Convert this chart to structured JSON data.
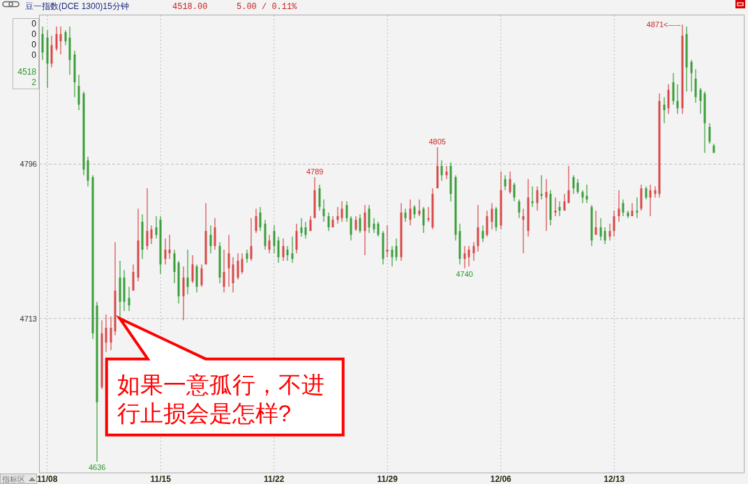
{
  "chart_data": {
    "type": "candlestick",
    "title": "豆一指数(DCE 1300)15分钟",
    "categories": [
      null,
      "11/08",
      null,
      null,
      null,
      null,
      null,
      null,
      null,
      null,
      null,
      null,
      null,
      null,
      null,
      null,
      null,
      null,
      null,
      null,
      null,
      null,
      null,
      null,
      null,
      null,
      "11/15",
      null,
      null,
      null,
      null,
      null,
      null,
      null,
      null,
      null,
      null,
      null,
      null,
      null,
      null,
      null,
      null,
      null,
      null,
      null,
      null,
      null,
      null,
      null,
      null,
      "11/22",
      null,
      null,
      null,
      null,
      null,
      null,
      null,
      null,
      null,
      null,
      null,
      null,
      null,
      null,
      null,
      null,
      null,
      null,
      null,
      null,
      null,
      null,
      null,
      null,
      "11/29",
      null,
      null,
      null,
      null,
      null,
      null,
      null,
      null,
      null,
      null,
      null,
      null,
      null,
      null,
      null,
      null,
      null,
      null,
      null,
      null,
      null,
      null,
      null,
      null,
      "12/06",
      null,
      null,
      null,
      null,
      null,
      null,
      null,
      null,
      null,
      null,
      null,
      null,
      null,
      null,
      null,
      null,
      null,
      null,
      null,
      null,
      null,
      null,
      null,
      null,
      "12/13",
      null,
      null,
      null,
      null,
      null,
      null,
      null,
      null,
      null,
      null,
      null,
      null,
      null,
      null,
      null,
      null,
      null,
      null,
      null,
      null,
      null,
      null
    ],
    "ohlc": [
      [
        4866,
        4870,
        4852,
        4856
      ],
      [
        4864,
        4868,
        4837,
        4850
      ],
      [
        4850,
        4865,
        4848,
        4860
      ],
      [
        4858,
        4870,
        4857,
        4866
      ],
      [
        4862,
        4870,
        4855,
        4866
      ],
      [
        4867,
        4868,
        4860,
        4862
      ],
      [
        4864,
        4870,
        4844,
        4852
      ],
      [
        4855,
        4857,
        4832,
        4840
      ],
      [
        4838,
        4844,
        4825,
        4828
      ],
      [
        4834,
        4835,
        4790,
        4793
      ],
      [
        4798,
        4800,
        4784,
        4787
      ],
      [
        4789,
        4790,
        4702,
        4705
      ],
      [
        4720,
        4722,
        4636,
        4668
      ],
      [
        4676,
        4712,
        4675,
        4705
      ],
      [
        4700,
        4715,
        4695,
        4708
      ],
      [
        4700,
        4714,
        4696,
        4708
      ],
      [
        4706,
        4754,
        4704,
        4728
      ],
      [
        4735,
        4744,
        4713,
        4722
      ],
      [
        4735,
        4739,
        4717,
        4722
      ],
      [
        4724,
        4730,
        4717,
        4720
      ],
      [
        4728,
        4742,
        4728,
        4738
      ],
      [
        4735,
        4772,
        4733,
        4755
      ],
      [
        4765,
        4769,
        4745,
        4750
      ],
      [
        4752,
        4783,
        4750,
        4760
      ],
      [
        4756,
        4763,
        4753,
        4761
      ],
      [
        4762,
        4768,
        4756,
        4758
      ],
      [
        4766,
        4768,
        4737,
        4742
      ],
      [
        4745,
        4756,
        4742,
        4750
      ],
      [
        4748,
        4758,
        4745,
        4750
      ],
      [
        4748,
        4750,
        4732,
        4738
      ],
      [
        4743,
        4744,
        4721,
        4725
      ],
      [
        4725,
        4741,
        4712,
        4735
      ],
      [
        4735,
        4750,
        4726,
        4730
      ],
      [
        4733,
        4747,
        4732,
        4742
      ],
      [
        4741,
        4742,
        4727,
        4730
      ],
      [
        4731,
        4742,
        4730,
        4740
      ],
      [
        4742,
        4775,
        4742,
        4760
      ],
      [
        4758,
        4763,
        4748,
        4752
      ],
      [
        4752,
        4767,
        4750,
        4762
      ],
      [
        4752,
        4754,
        4732,
        4735
      ],
      [
        4730,
        4750,
        4727,
        4738
      ],
      [
        4740,
        4758,
        4730,
        4748
      ],
      [
        4732,
        4746,
        4727,
        4742
      ],
      [
        4735,
        4748,
        4734,
        4744
      ],
      [
        4738,
        4748,
        4737,
        4745
      ],
      [
        4748,
        4750,
        4743,
        4745
      ],
      [
        4745,
        4767,
        4744,
        4752
      ],
      [
        4760,
        4772,
        4759,
        4768
      ],
      [
        4770,
        4773,
        4760,
        4762
      ],
      [
        4764,
        4766,
        4750,
        4752
      ],
      [
        4750,
        4758,
        4748,
        4755
      ],
      [
        4760,
        4763,
        4748,
        4752
      ],
      [
        4755,
        4757,
        4743,
        4746
      ],
      [
        4746,
        4756,
        4744,
        4752
      ],
      [
        4750,
        4752,
        4744,
        4747
      ],
      [
        4748,
        4757,
        4743,
        4745
      ],
      [
        4750,
        4764,
        4748,
        4760
      ],
      [
        4762,
        4767,
        4757,
        4759
      ],
      [
        4762,
        4765,
        4756,
        4758
      ],
      [
        4760,
        4768,
        4760,
        4766
      ],
      [
        4767,
        4789,
        4767,
        4782
      ],
      [
        4783,
        4785,
        4771,
        4773
      ],
      [
        4772,
        4777,
        4765,
        4768
      ],
      [
        4768,
        4770,
        4760,
        4762
      ],
      [
        4762,
        4768,
        4762,
        4766
      ],
      [
        4766,
        4773,
        4764,
        4768
      ],
      [
        4767,
        4776,
        4765,
        4772
      ],
      [
        4774,
        4776,
        4765,
        4767
      ],
      [
        4767,
        4768,
        4755,
        4758
      ],
      [
        4761,
        4768,
        4760,
        4766
      ],
      [
        4767,
        4769,
        4759,
        4760
      ],
      [
        4760,
        4774,
        4747,
        4770
      ],
      [
        4772,
        4774,
        4759,
        4762
      ],
      [
        4764,
        4767,
        4759,
        4761
      ],
      [
        4764,
        4765,
        4757,
        4758
      ],
      [
        4759,
        4760,
        4742,
        4745
      ],
      [
        4749,
        4763,
        4746,
        4750
      ],
      [
        4750,
        4752,
        4741,
        4746
      ],
      [
        4752,
        4756,
        4744,
        4746
      ],
      [
        4746,
        4775,
        4744,
        4770
      ],
      [
        4770,
        4772,
        4765,
        4767
      ],
      [
        4766,
        4777,
        4763,
        4772
      ],
      [
        4773,
        4774,
        4767,
        4769
      ],
      [
        4769,
        4777,
        4768,
        4771
      ],
      [
        4772,
        4773,
        4759,
        4763
      ],
      [
        4766,
        4773,
        4765,
        4767
      ],
      [
        4762,
        4783,
        4761,
        4780
      ],
      [
        4783,
        4805,
        4783,
        4795
      ],
      [
        4795,
        4798,
        4787,
        4790
      ],
      [
        4790,
        4795,
        4788,
        4792
      ],
      [
        4795,
        4797,
        4776,
        4780
      ],
      [
        4789,
        4790,
        4755,
        4758
      ],
      [
        4760,
        4764,
        4742,
        4745
      ],
      [
        4745,
        4752,
        4740,
        4748
      ],
      [
        4746,
        4752,
        4741,
        4750
      ],
      [
        4748,
        4754,
        4744,
        4752
      ],
      [
        4752,
        4774,
        4749,
        4762
      ],
      [
        4760,
        4763,
        4754,
        4756
      ],
      [
        4758,
        4771,
        4757,
        4768
      ],
      [
        4765,
        4775,
        4761,
        4772
      ],
      [
        4772,
        4773,
        4760,
        4762
      ],
      [
        4763,
        4792,
        4761,
        4782
      ],
      [
        4788,
        4790,
        4782,
        4784
      ],
      [
        4781,
        4792,
        4780,
        4788
      ],
      [
        4785,
        4786,
        4776,
        4778
      ],
      [
        4776,
        4777,
        4767,
        4770
      ],
      [
        4766,
        4772,
        4748,
        4768
      ],
      [
        4760,
        4788,
        4757,
        4778
      ],
      [
        4776,
        4784,
        4773,
        4775
      ],
      [
        4775,
        4784,
        4771,
        4782
      ],
      [
        4780,
        4790,
        4777,
        4779
      ],
      [
        4778,
        4788,
        4760,
        4781
      ],
      [
        4780,
        4782,
        4763,
        4766
      ],
      [
        4770,
        4778,
        4768,
        4771
      ],
      [
        4773,
        4776,
        4768,
        4771
      ],
      [
        4771,
        4780,
        4771,
        4776
      ],
      [
        4775,
        4795,
        4775,
        4782
      ],
      [
        4789,
        4790,
        4780,
        4783
      ],
      [
        4786,
        4788,
        4780,
        4781
      ],
      [
        4781,
        4782,
        4775,
        4778
      ],
      [
        4779,
        4785,
        4775,
        4777
      ],
      [
        4773,
        4774,
        4752,
        4755
      ],
      [
        4758,
        4771,
        4758,
        4762
      ],
      [
        4762,
        4767,
        4755,
        4757
      ],
      [
        4760,
        4762,
        4753,
        4755
      ],
      [
        4757,
        4764,
        4755,
        4760
      ],
      [
        4760,
        4771,
        4757,
        4768
      ],
      [
        4768,
        4782,
        4765,
        4772
      ],
      [
        4775,
        4777,
        4768,
        4770
      ],
      [
        4770,
        4771,
        4767,
        4768
      ],
      [
        4768,
        4775,
        4768,
        4771
      ],
      [
        4771,
        4778,
        4767,
        4770
      ],
      [
        4772,
        4785,
        4771,
        4783
      ],
      [
        4783,
        4784,
        4777,
        4778
      ],
      [
        4778,
        4785,
        4768,
        4782
      ],
      [
        4780,
        4784,
        4778,
        4782
      ],
      [
        4780,
        4834,
        4778,
        4830
      ],
      [
        4828,
        4832,
        4818,
        4825
      ],
      [
        4826,
        4839,
        4823,
        4836
      ],
      [
        4840,
        4845,
        4828,
        4830
      ],
      [
        4830,
        4839,
        4823,
        4826
      ],
      [
        4826,
        4871,
        4823,
        4865
      ],
      [
        4866,
        4870,
        4835,
        4848
      ],
      [
        4851,
        4852,
        4835,
        4845
      ],
      [
        4842,
        4847,
        4829,
        4832
      ],
      [
        4836,
        4837,
        4823,
        4830
      ],
      [
        4834,
        4835,
        4802,
        4818
      ],
      [
        4816,
        4818,
        4807,
        4808
      ],
      [
        4806,
        4807,
        4802,
        4802
      ]
    ],
    "ylim": [
      4630,
      4876
    ],
    "yticks": [
      4713,
      4796
    ],
    "grid": true,
    "annotations": [
      "4518.00",
      "5.00 / 0.11%",
      "0",
      "0",
      "0",
      "0",
      "4518",
      "2",
      "指标区",
      "4636",
      "4789",
      "4805",
      "4740",
      "4871<-----",
      "如果一意孤行，不进行止损会是怎样?"
    ]
  }
}
